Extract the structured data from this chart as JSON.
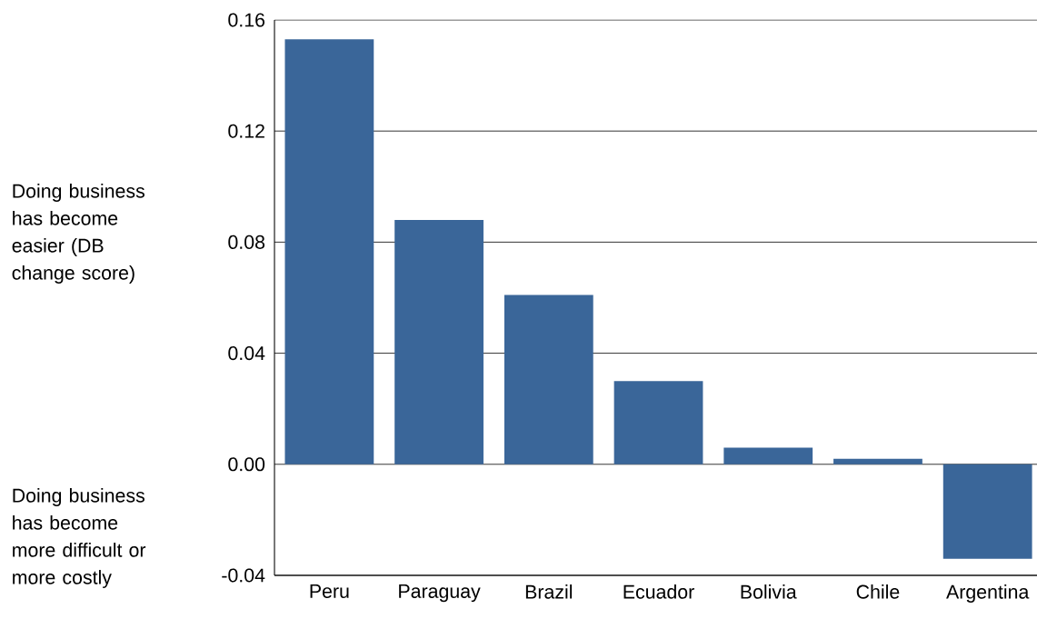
{
  "chart_data": {
    "type": "bar",
    "categories": [
      "Peru",
      "Paraguay",
      "Brazil",
      "Ecuador",
      "Bolivia",
      "Chile",
      "Argentina"
    ],
    "values": [
      0.153,
      0.088,
      0.061,
      0.03,
      0.006,
      0.002,
      -0.034
    ],
    "color": "#3a6699",
    "ylim": [
      -0.04,
      0.16
    ],
    "yticks": [
      {
        "value": -0.04,
        "label": "-0.04"
      },
      {
        "value": 0,
        "label": "0.00"
      },
      0.04,
      0.08,
      0.12,
      0.16
    ],
    "grid": "y",
    "annotations": [
      "Doing business has become easier (DB change score)",
      "Doing business has become more difficult or more costly"
    ]
  }
}
